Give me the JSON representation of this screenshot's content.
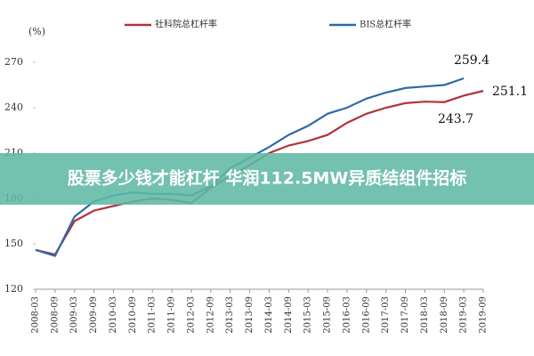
{
  "chart_data": {
    "type": "line",
    "y_unit": "(%)",
    "categories": [
      "2008-03",
      "2008-09",
      "2009-03",
      "2009-09",
      "2010-03",
      "2010-09",
      "2011-03",
      "2011-09",
      "2012-03",
      "2012-09",
      "2013-03",
      "2013-09",
      "2014-03",
      "2014-09",
      "2015-03",
      "2015-09",
      "2016-03",
      "2016-09",
      "2017-03",
      "2017-09",
      "2018-03",
      "2018-09",
      "2019-03",
      "2019-09"
    ],
    "series": [
      {
        "name": "社科院总杠杆率",
        "color": "#b0333a",
        "values": [
          146,
          143,
          165,
          172,
          175,
          178,
          180,
          179,
          177,
          187,
          195,
          202,
          210,
          215,
          218,
          222,
          230,
          236,
          240,
          243,
          244,
          243.7,
          248,
          251.1
        ]
      },
      {
        "name": "BIS总杠杆率",
        "color": "#2f6aa8",
        "values": [
          146,
          142,
          168,
          178,
          182,
          184,
          183,
          183,
          182,
          188,
          200,
          207,
          214,
          222,
          228,
          236,
          240,
          246,
          250,
          253,
          254,
          255,
          259.4,
          null
        ]
      }
    ],
    "annotations": [
      "259.4",
      "251.1",
      "243.7"
    ],
    "ylim": [
      120,
      270
    ],
    "yticks": [
      120,
      150,
      180,
      210,
      240,
      270
    ]
  },
  "overlay_text": "股票多少钱才能杠杆 华润112.5MW异质结组件招标"
}
